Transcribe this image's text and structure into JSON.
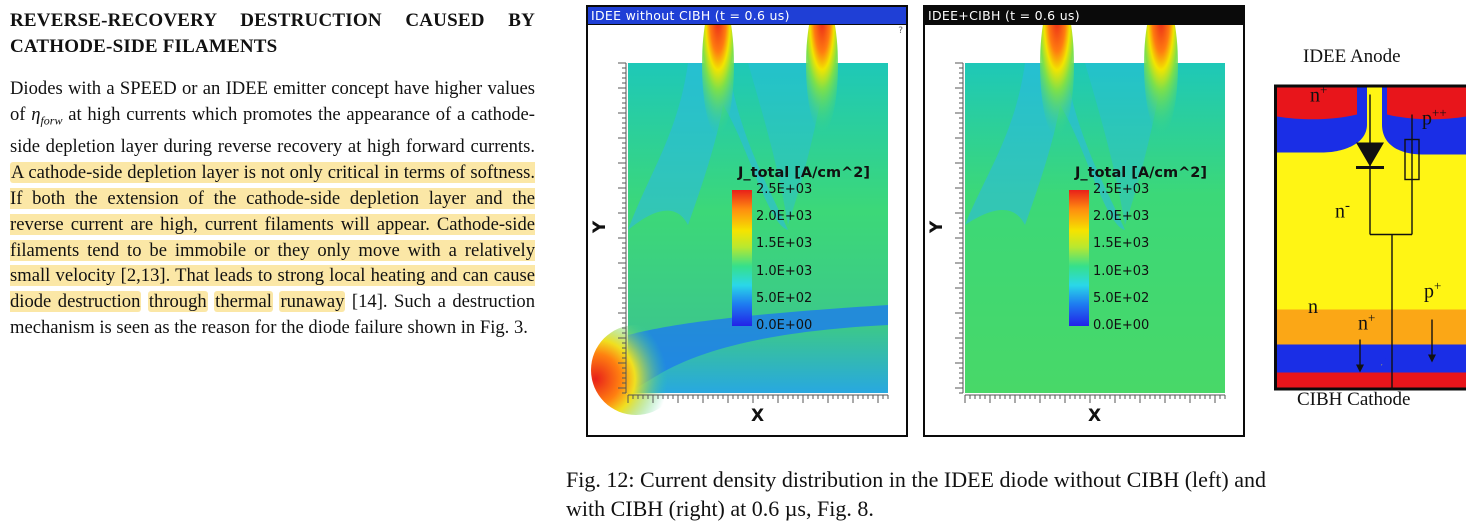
{
  "section": {
    "heading": "REVERSE-RECOVERY DESTRUCTION CAUSED BY CATHODE-SIDE FILAMENTS",
    "para_start": "Diodes with a SPEED or an IDEE emitter concept have higher values of ",
    "eta_symbol": "η",
    "eta_sub": "forw",
    "para_mid": " at high currents which promotes the appearance of a cathode-side depletion layer during reverse recovery at high forward currents.",
    "highlight_1": "A cathode-side depletion layer is not only critical in terms of softness. If both the extension of the cathode-side depletion layer and the reverse current are high, current filaments will appear. Cathode-side filaments tend to be immobile or they only move with a relatively small velocity [2,13]. That leads to strong local heating and can cause diode destruction",
    "highlight_2": "through",
    "highlight_3": "thermal",
    "highlight_4": "runaway",
    "para_end": " [14]. Such a destruction mechanism is seen as the reason for the diode failure shown in Fig. 3."
  },
  "figure": {
    "panel_left_title": "IDEE without CIBH (t = 0.6 us)",
    "panel_right_title": "IDEE+CIBH (t = 0.6 us)",
    "x_axis": "X",
    "y_axis": "Y",
    "legend_title": "J_total [A/cm^2]",
    "legend_levels": [
      "2.5E+03",
      "2.0E+03",
      "1.5E+03",
      "1.0E+03",
      "5.0E+02",
      "0.0E+00"
    ],
    "caption": "Fig. 12: Current density distribution in the IDEE diode without CIBH (left) and with CIBH (right) at 0.6 µs, Fig. 8."
  },
  "schematic": {
    "label_top": "IDEE Anode",
    "label_bottom": "CIBH Cathode",
    "region_n_plus_top": "n",
    "region_p_plus_plus": "p",
    "region_n_minus": "n",
    "region_n": "n",
    "region_n_plus_bottom": "n",
    "region_p_plus": "p",
    "sup_plus": "+",
    "sup_plus_plus": "++",
    "sup_minus": "-",
    "colors": {
      "n_plus": "#e8151b",
      "p_plus": "#1a2ee6",
      "n_minus": "#fff514",
      "n": "#fba716"
    }
  }
}
